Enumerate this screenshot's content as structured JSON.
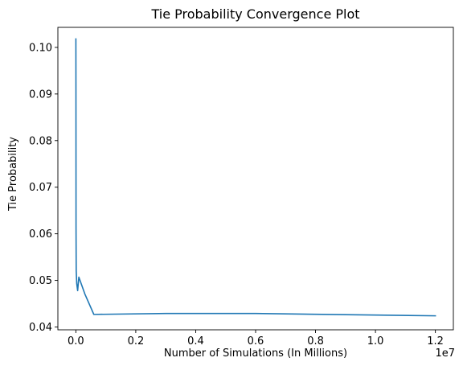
{
  "chart_data": {
    "type": "line",
    "title": "Tie Probability Convergence Plot",
    "xlabel": "Number of Simulations (In Millions)",
    "ylabel": "Tie Probability",
    "x_offset_label": "1e7",
    "xlim": [
      -600000,
      12600000
    ],
    "ylim": [
      0.0394,
      0.1043
    ],
    "x_ticks": [
      0,
      2000000,
      4000000,
      6000000,
      8000000,
      10000000,
      12000000
    ],
    "x_tick_labels": [
      "0.0",
      "0.2",
      "0.4",
      "0.6",
      "0.8",
      "1.0",
      "1.2"
    ],
    "y_ticks": [
      0.04,
      0.05,
      0.06,
      0.07,
      0.08,
      0.09,
      0.1
    ],
    "y_tick_labels": [
      "0.04",
      "0.05",
      "0.06",
      "0.07",
      "0.08",
      "0.09",
      "0.10"
    ],
    "grid": false,
    "legend": "none",
    "series": [
      {
        "color": "#1f77b4",
        "x": [
          1000,
          3000,
          6000,
          12000,
          30000,
          60000,
          100000,
          300000,
          600000,
          3000000,
          6000000,
          12000000
        ],
        "y": [
          0.1018,
          0.091,
          0.0611,
          0.0521,
          0.0493,
          0.0478,
          0.0507,
          0.0471,
          0.0427,
          0.0429,
          0.0429,
          0.0424
        ]
      }
    ]
  }
}
